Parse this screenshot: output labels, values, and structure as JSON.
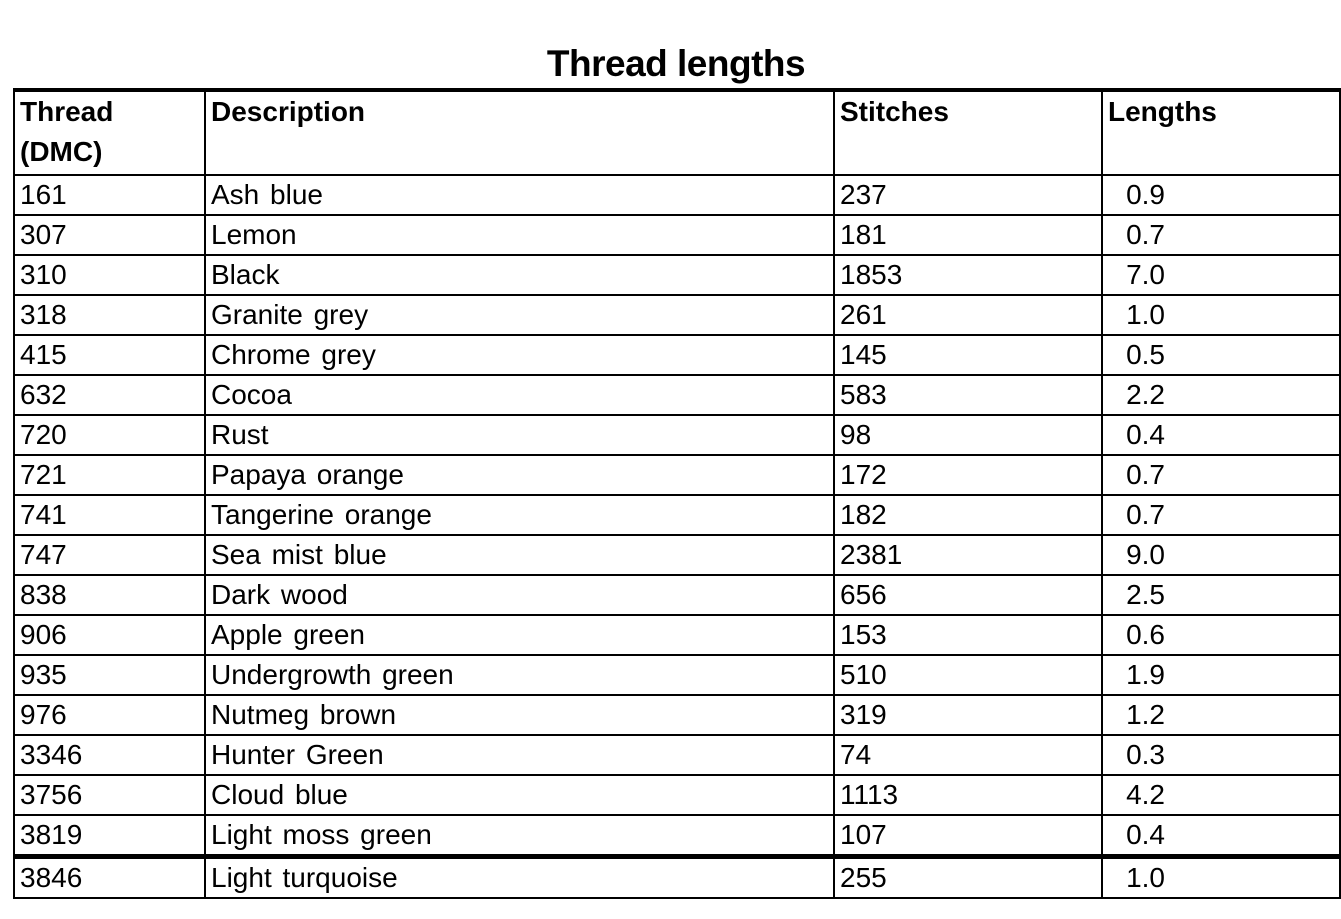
{
  "page": {
    "title": "Thread lengths"
  },
  "table": {
    "columns": [
      "Thread (DMC)",
      "Description",
      "Stitches",
      "Lengths"
    ],
    "rows": [
      {
        "thread": "161",
        "description": "Ash blue",
        "stitches": "237",
        "length": "0.9"
      },
      {
        "thread": "307",
        "description": "Lemon",
        "stitches": "181",
        "length": "0.7"
      },
      {
        "thread": "310",
        "description": "Black",
        "stitches": "1853",
        "length": "7.0"
      },
      {
        "thread": "318",
        "description": "Granite grey",
        "stitches": "261",
        "length": "1.0"
      },
      {
        "thread": "415",
        "description": "Chrome grey",
        "stitches": "145",
        "length": "0.5"
      },
      {
        "thread": "632",
        "description": "Cocoa",
        "stitches": "583",
        "length": "2.2"
      },
      {
        "thread": "720",
        "description": "Rust",
        "stitches": "98",
        "length": "0.4"
      },
      {
        "thread": "721",
        "description": "Papaya orange",
        "stitches": "172",
        "length": "0.7"
      },
      {
        "thread": "741",
        "description": "Tangerine orange",
        "stitches": "182",
        "length": "0.7"
      },
      {
        "thread": "747",
        "description": "Sea mist blue",
        "stitches": "2381",
        "length": "9.0"
      },
      {
        "thread": "838",
        "description": "Dark wood",
        "stitches": "656",
        "length": "2.5"
      },
      {
        "thread": "906",
        "description": "Apple green",
        "stitches": "153",
        "length": "0.6"
      },
      {
        "thread": "935",
        "description": "Undergrowth green",
        "stitches": "510",
        "length": "1.9"
      },
      {
        "thread": "976",
        "description": "Nutmeg brown",
        "stitches": "319",
        "length": "1.2"
      },
      {
        "thread": "3346",
        "description": "Hunter Green",
        "stitches": "74",
        "length": "0.3"
      },
      {
        "thread": "3756",
        "description": "Cloud blue",
        "stitches": "1113",
        "length": "4.2"
      },
      {
        "thread": "3819",
        "description": "Light moss green",
        "stitches": "107",
        "length": "0.4"
      },
      {
        "thread": "3846",
        "description": "Light turquoise",
        "stitches": "255",
        "length": "1.0"
      }
    ]
  },
  "colors": {
    "text": "#000000",
    "background": "#ffffff",
    "border": "#000000"
  }
}
